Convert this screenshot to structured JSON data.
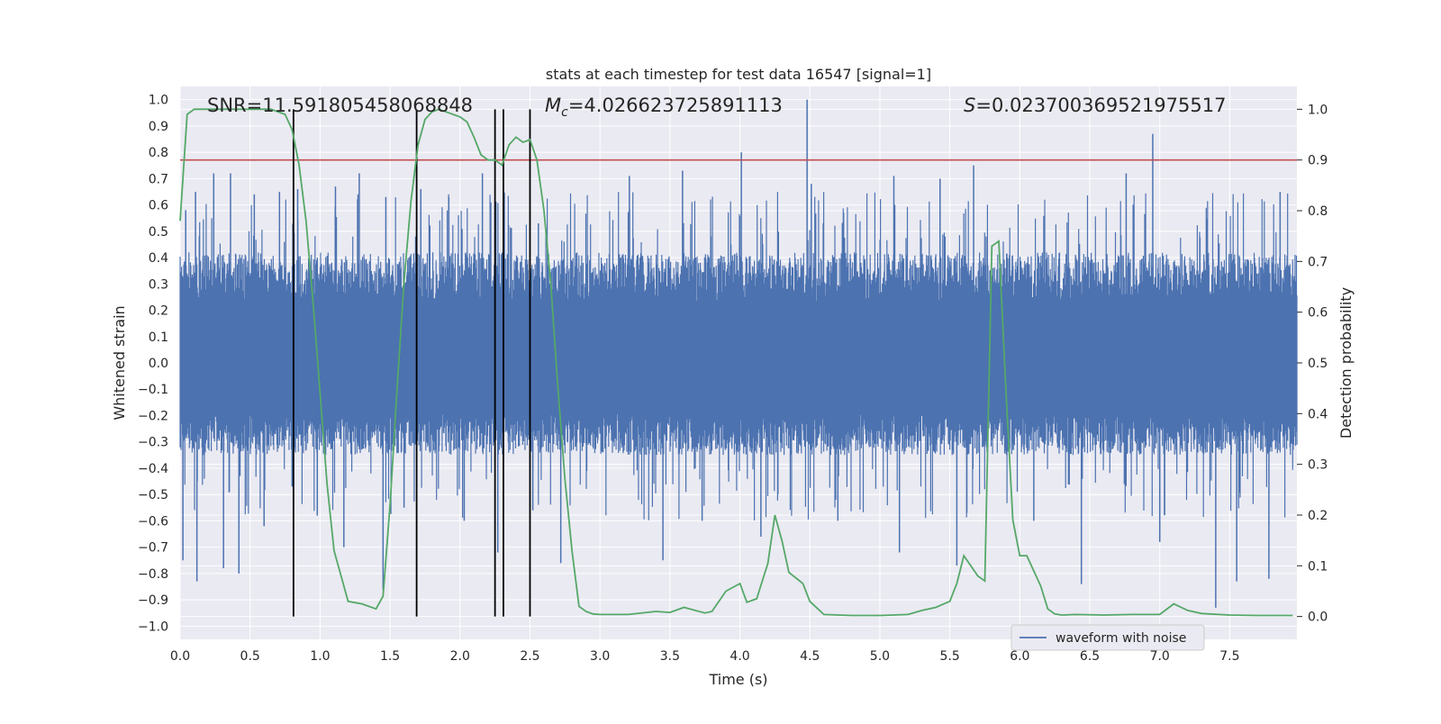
{
  "chart_data": {
    "type": "line",
    "title": "stats at each timestep for test data 16547 [signal=1]",
    "xlabel": "Time (s)",
    "ylabel": "Whitened strain",
    "ylabel_right": "Detection probability",
    "xlim": [
      0.0,
      7.98
    ],
    "ylim": [
      -1.05,
      1.05
    ],
    "ylim_right": [
      -0.045,
      1.045
    ],
    "xticks": [
      "0.0",
      "0.5",
      "1.0",
      "1.5",
      "2.0",
      "2.5",
      "3.0",
      "3.5",
      "4.0",
      "4.5",
      "5.0",
      "5.5",
      "6.0",
      "6.5",
      "7.0",
      "7.5"
    ],
    "yticks": [
      "1.0",
      "0.9",
      "0.8",
      "0.7",
      "0.6",
      "0.5",
      "0.4",
      "0.3",
      "0.2",
      "0.1",
      "0.0",
      "−0.1",
      "−0.2",
      "−0.3",
      "−0.4",
      "−0.5",
      "−0.6",
      "−0.7",
      "−0.8",
      "−0.9",
      "−1.0"
    ],
    "yticks_right": [
      "1.0",
      "0.9",
      "0.8",
      "0.7",
      "0.6",
      "0.5",
      "0.4",
      "0.3",
      "0.2",
      "0.1",
      "0.0"
    ],
    "grid": true,
    "legend_position": "lower-right",
    "annotations": {
      "snr": "SNR=11.591805458068848",
      "mc_symbol": "M",
      "mc_sub": "c",
      "mc_value": "=4.026623725891113",
      "s_symbol": "S",
      "s_value": "=0.023700369521975517"
    },
    "threshold": {
      "y_right": 0.9,
      "color": "#c44e52"
    },
    "vertical_lines": {
      "x": [
        0.81,
        1.69,
        2.25,
        2.31,
        2.5
      ],
      "y_right_range": [
        0.0,
        1.0
      ],
      "color": "#000000"
    },
    "series": [
      {
        "name": "waveform with noise",
        "kind": "noise-band",
        "color": "#4c72b0",
        "typical_envelope": [
          -0.35,
          0.42
        ],
        "spikes": [
          {
            "x": 0.02,
            "y": -0.75
          },
          {
            "x": 0.04,
            "y": 0.58
          },
          {
            "x": 0.11,
            "y": 0.65
          },
          {
            "x": 0.12,
            "y": -0.83
          },
          {
            "x": 0.24,
            "y": 0.72
          },
          {
            "x": 0.31,
            "y": -0.78
          },
          {
            "x": 0.36,
            "y": 0.72
          },
          {
            "x": 0.42,
            "y": -0.8
          },
          {
            "x": 0.53,
            "y": 0.64
          },
          {
            "x": 0.6,
            "y": -0.62
          },
          {
            "x": 0.71,
            "y": 0.65
          },
          {
            "x": 0.8,
            "y": -0.47
          },
          {
            "x": 0.84,
            "y": 0.66
          },
          {
            "x": 0.98,
            "y": -0.58
          },
          {
            "x": 1.11,
            "y": 0.67
          },
          {
            "x": 1.17,
            "y": -0.7
          },
          {
            "x": 1.28,
            "y": 0.72
          },
          {
            "x": 1.45,
            "y": -0.86
          },
          {
            "x": 1.47,
            "y": 0.63
          },
          {
            "x": 1.6,
            "y": -0.55
          },
          {
            "x": 1.72,
            "y": 0.66
          },
          {
            "x": 1.92,
            "y": 0.63
          },
          {
            "x": 2.03,
            "y": -0.6
          },
          {
            "x": 2.16,
            "y": 0.72
          },
          {
            "x": 2.27,
            "y": -0.72
          },
          {
            "x": 2.52,
            "y": -0.56
          },
          {
            "x": 2.56,
            "y": 0.53
          },
          {
            "x": 2.72,
            "y": -0.76
          },
          {
            "x": 3.21,
            "y": 0.71
          },
          {
            "x": 3.45,
            "y": -0.75
          },
          {
            "x": 3.59,
            "y": 0.73
          },
          {
            "x": 3.73,
            "y": -0.6
          },
          {
            "x": 4.01,
            "y": 0.8
          },
          {
            "x": 4.15,
            "y": -0.66
          },
          {
            "x": 4.48,
            "y": 1.0
          },
          {
            "x": 4.51,
            "y": 0.68
          },
          {
            "x": 4.7,
            "y": -0.6
          },
          {
            "x": 5.1,
            "y": 0.71
          },
          {
            "x": 5.14,
            "y": -0.72
          },
          {
            "x": 5.43,
            "y": 0.7
          },
          {
            "x": 5.55,
            "y": -0.77
          },
          {
            "x": 5.67,
            "y": 0.75
          },
          {
            "x": 6.1,
            "y": -0.6
          },
          {
            "x": 6.44,
            "y": -0.84
          },
          {
            "x": 6.76,
            "y": 0.72
          },
          {
            "x": 6.95,
            "y": 0.87
          },
          {
            "x": 7.0,
            "y": -0.68
          },
          {
            "x": 7.4,
            "y": -0.93
          },
          {
            "x": 7.55,
            "y": -0.83
          },
          {
            "x": 7.78,
            "y": -0.82
          },
          {
            "x": 7.86,
            "y": 0.65
          }
        ]
      },
      {
        "name": "",
        "axis": "right",
        "color": "#55a868",
        "x": [
          0.0,
          0.05,
          0.1,
          0.2,
          0.3,
          0.4,
          0.5,
          0.6,
          0.65,
          0.75,
          0.8,
          0.85,
          0.9,
          0.95,
          1.0,
          1.05,
          1.1,
          1.15,
          1.2,
          1.3,
          1.4,
          1.45,
          1.5,
          1.55,
          1.6,
          1.65,
          1.7,
          1.75,
          1.8,
          1.85,
          1.9,
          1.95,
          2.0,
          2.05,
          2.1,
          2.15,
          2.2,
          2.25,
          2.3,
          2.35,
          2.4,
          2.45,
          2.5,
          2.55,
          2.6,
          2.65,
          2.7,
          2.75,
          2.8,
          2.85,
          2.9,
          2.95,
          3.0,
          3.2,
          3.4,
          3.5,
          3.6,
          3.75,
          3.8,
          3.9,
          4.0,
          4.05,
          4.12,
          4.2,
          4.25,
          4.3,
          4.35,
          4.45,
          4.5,
          4.6,
          4.8,
          5.0,
          5.2,
          5.3,
          5.4,
          5.45,
          5.5,
          5.55,
          5.6,
          5.65,
          5.7,
          5.75,
          5.8,
          5.85,
          5.9,
          5.95,
          6.0,
          6.05,
          6.15,
          6.2,
          6.25,
          6.3,
          6.4,
          6.6,
          6.8,
          7.0,
          7.1,
          7.2,
          7.3,
          7.5,
          7.7,
          7.9,
          7.95
        ],
        "y": [
          0.78,
          0.99,
          1.0,
          1.0,
          1.0,
          1.0,
          1.0,
          1.0,
          1.0,
          0.99,
          0.96,
          0.89,
          0.78,
          0.62,
          0.44,
          0.26,
          0.13,
          0.08,
          0.03,
          0.025,
          0.015,
          0.04,
          0.22,
          0.45,
          0.66,
          0.82,
          0.93,
          0.98,
          0.995,
          1.0,
          0.995,
          0.99,
          0.985,
          0.975,
          0.945,
          0.91,
          0.9,
          0.9,
          0.89,
          0.93,
          0.945,
          0.935,
          0.94,
          0.9,
          0.8,
          0.65,
          0.45,
          0.27,
          0.13,
          0.02,
          0.01,
          0.005,
          0.004,
          0.004,
          0.01,
          0.008,
          0.018,
          0.007,
          0.01,
          0.05,
          0.065,
          0.028,
          0.035,
          0.105,
          0.2,
          0.15,
          0.087,
          0.065,
          0.03,
          0.004,
          0.002,
          0.002,
          0.004,
          0.012,
          0.018,
          0.024,
          0.03,
          0.065,
          0.12,
          0.1,
          0.08,
          0.07,
          0.73,
          0.74,
          0.45,
          0.19,
          0.12,
          0.12,
          0.06,
          0.015,
          0.005,
          0.003,
          0.004,
          0.003,
          0.004,
          0.004,
          0.025,
          0.012,
          0.006,
          0.003,
          0.002,
          0.002,
          0.002
        ]
      }
    ]
  }
}
